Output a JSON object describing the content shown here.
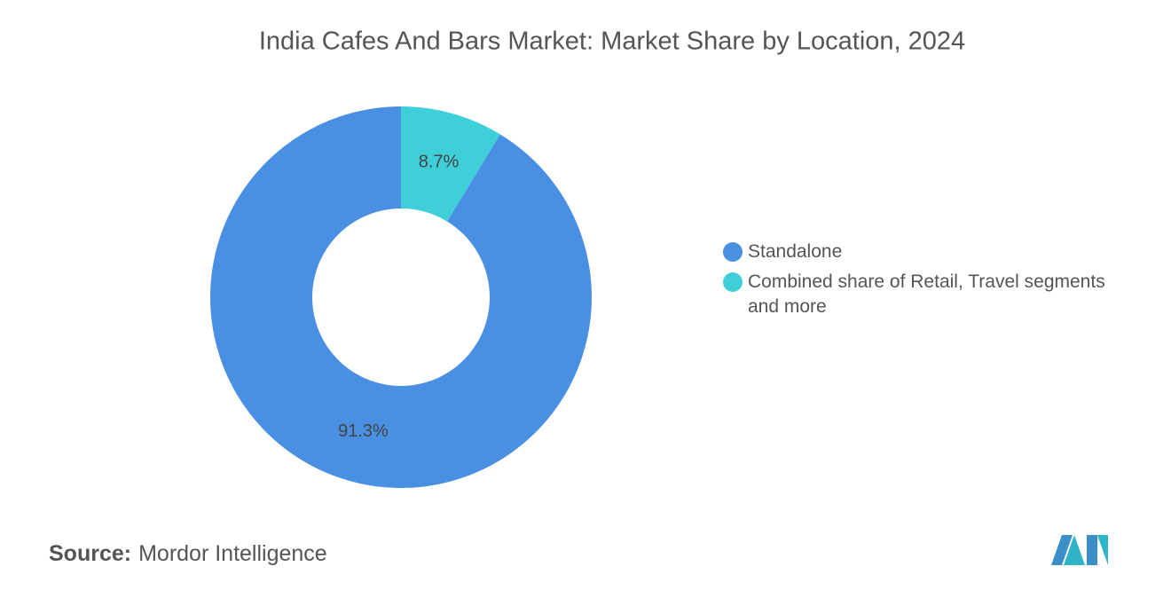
{
  "chart_data": {
    "type": "pie",
    "title": "India Cafes And Bars Market: Market Share by Location, 2024",
    "categories": [
      "Standalone",
      "Combined share of Retail, Travel segments and more"
    ],
    "values": [
      91.3,
      8.7
    ],
    "value_labels": [
      "91.3%",
      "8.7%"
    ],
    "colors": [
      "#4a90e2",
      "#3ecfd9"
    ],
    "donut": true,
    "legend": "right",
    "source_label": "Source:",
    "source": "Mordor Intelligence"
  }
}
